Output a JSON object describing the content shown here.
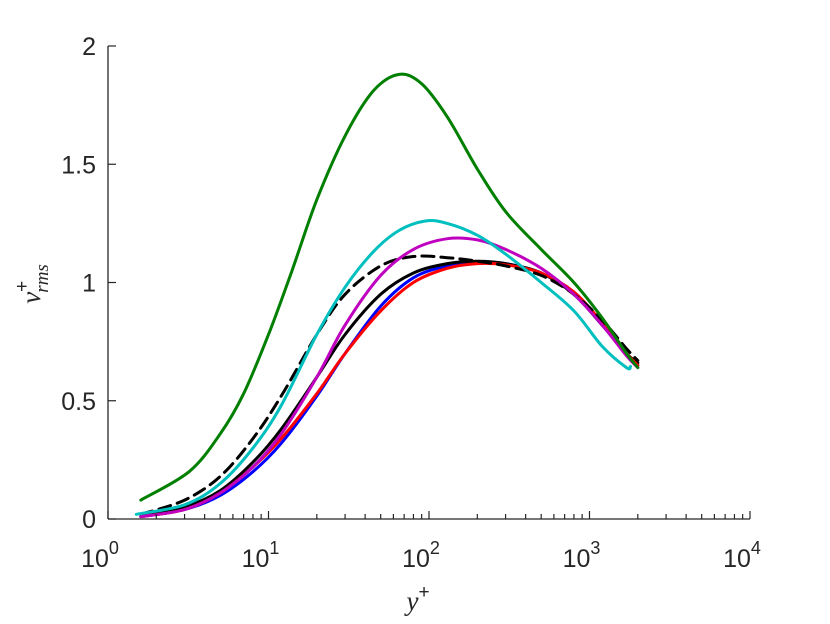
{
  "chart_data": {
    "type": "line",
    "title": "",
    "xscale": "log",
    "xlim": [
      1,
      10000
    ],
    "ylim": [
      0,
      2
    ],
    "grid": false,
    "xlabel": {
      "base": "y",
      "sup": "+"
    },
    "ylabel": {
      "base": "v",
      "sup": "+",
      "sub": "rms"
    },
    "xticks": [
      {
        "value": 1,
        "base": "10",
        "exp": "0"
      },
      {
        "value": 10,
        "base": "10",
        "exp": "1"
      },
      {
        "value": 100,
        "base": "10",
        "exp": "2"
      },
      {
        "value": 1000,
        "base": "10",
        "exp": "3"
      },
      {
        "value": 10000,
        "base": "10",
        "exp": "4"
      }
    ],
    "yticks": [
      {
        "value": 0,
        "label": "0"
      },
      {
        "value": 0.5,
        "label": "0.5"
      },
      {
        "value": 1,
        "label": "1"
      },
      {
        "value": 1.5,
        "label": "1.5"
      },
      {
        "value": 2,
        "label": "2"
      }
    ],
    "series": [
      {
        "name": "blue",
        "color": "#0000ff",
        "dash": "",
        "x": [
          1.6,
          3,
          5,
          8,
          12,
          20,
          30,
          50,
          80,
          130,
          200,
          300,
          500,
          800,
          1200,
          1700,
          2000
        ],
        "y": [
          0.01,
          0.04,
          0.1,
          0.2,
          0.32,
          0.52,
          0.7,
          0.9,
          1.02,
          1.07,
          1.085,
          1.08,
          1.04,
          0.95,
          0.82,
          0.7,
          0.65
        ]
      },
      {
        "name": "black",
        "color": "#000000",
        "dash": "",
        "x": [
          1.6,
          3,
          5,
          8,
          12,
          20,
          30,
          50,
          80,
          130,
          200,
          300,
          500,
          800,
          1200,
          1700,
          2000
        ],
        "y": [
          0.01,
          0.05,
          0.12,
          0.24,
          0.38,
          0.6,
          0.78,
          0.95,
          1.04,
          1.08,
          1.09,
          1.08,
          1.04,
          0.95,
          0.82,
          0.7,
          0.66
        ]
      },
      {
        "name": "red",
        "color": "#ff0000",
        "dash": "",
        "x": [
          1.6,
          3,
          5,
          8,
          12,
          20,
          30,
          50,
          80,
          130,
          200,
          300,
          500,
          800,
          1200,
          1700,
          2000
        ],
        "y": [
          0.01,
          0.04,
          0.11,
          0.22,
          0.34,
          0.53,
          0.7,
          0.88,
          1.0,
          1.06,
          1.08,
          1.075,
          1.04,
          0.96,
          0.83,
          0.7,
          0.65
        ]
      },
      {
        "name": "black-dashed",
        "color": "#000000",
        "dash": "12,7",
        "x": [
          1.6,
          3,
          5,
          8,
          12,
          20,
          30,
          50,
          80,
          130,
          200,
          300,
          500,
          800,
          1200,
          1700,
          2000
        ],
        "y": [
          0.02,
          0.08,
          0.18,
          0.34,
          0.52,
          0.78,
          0.95,
          1.07,
          1.11,
          1.105,
          1.09,
          1.07,
          1.03,
          0.95,
          0.84,
          0.72,
          0.67
        ]
      },
      {
        "name": "magenta",
        "color": "#bf00bf",
        "dash": "",
        "x": [
          1.6,
          3,
          5,
          8,
          12,
          20,
          30,
          50,
          80,
          130,
          200,
          300,
          500,
          800,
          1200,
          1700,
          2000
        ],
        "y": [
          0.01,
          0.04,
          0.11,
          0.22,
          0.36,
          0.6,
          0.82,
          1.03,
          1.14,
          1.185,
          1.18,
          1.14,
          1.06,
          0.95,
          0.82,
          0.69,
          0.64
        ]
      },
      {
        "name": "cyan",
        "color": "#00bfbf",
        "dash": "",
        "x": [
          1.5,
          3,
          5,
          8,
          12,
          20,
          30,
          45,
          65,
          95,
          130,
          200,
          300,
          500,
          800,
          1200,
          1700,
          1800
        ],
        "y": [
          0.02,
          0.06,
          0.15,
          0.3,
          0.48,
          0.78,
          0.98,
          1.13,
          1.22,
          1.26,
          1.25,
          1.2,
          1.12,
          1.0,
          0.88,
          0.73,
          0.64,
          0.645
        ]
      },
      {
        "name": "green",
        "color": "#007f00",
        "dash": "",
        "x": [
          1.6,
          3.2,
          5,
          7,
          10,
          14,
          20,
          30,
          45,
          65,
          90,
          130,
          200,
          300,
          500,
          800,
          1200,
          1700,
          2000
        ],
        "y": [
          0.08,
          0.2,
          0.36,
          0.53,
          0.78,
          1.05,
          1.35,
          1.62,
          1.81,
          1.88,
          1.84,
          1.7,
          1.48,
          1.3,
          1.14,
          1.0,
          0.85,
          0.7,
          0.64
        ]
      }
    ]
  }
}
